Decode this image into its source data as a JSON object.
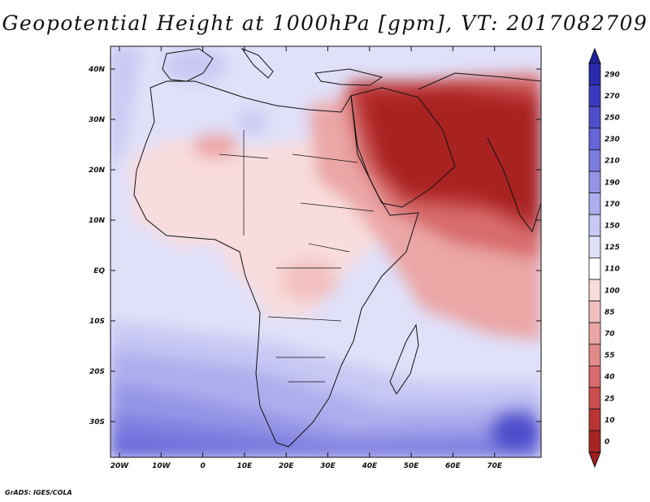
{
  "title": "Geopotential Height at 1000hPa [gpm], VT: 2017082709",
  "credit": "GrADS: IGES/COLA",
  "axes": {
    "lon_labels": [
      "20W",
      "10W",
      "0",
      "10E",
      "20E",
      "30E",
      "40E",
      "50E",
      "60E",
      "70E"
    ],
    "lat_labels": [
      "40N",
      "30N",
      "20N",
      "10N",
      "EQ",
      "10S",
      "20S",
      "30S"
    ]
  },
  "colorbar": {
    "labels": [
      "290",
      "270",
      "250",
      "230",
      "210",
      "190",
      "170",
      "150",
      "125",
      "110",
      "100",
      "85",
      "70",
      "55",
      "40",
      "25",
      "10",
      "0"
    ],
    "colors": [
      "#2b2bb0",
      "#3a3ac0",
      "#4f4fce",
      "#6565d8",
      "#7c7ce0",
      "#9595e7",
      "#aeaeee",
      "#c8c8f4",
      "#e0e0f9",
      "#ffffff",
      "#f9dcdc",
      "#f2c0c0",
      "#eba6a6",
      "#e28a8a",
      "#d86c6c",
      "#cc4e4e",
      "#bb3434",
      "#a82424"
    ],
    "top_arrow_color": "#20209a",
    "bottom_arrow_color": "#a01e1e"
  }
}
